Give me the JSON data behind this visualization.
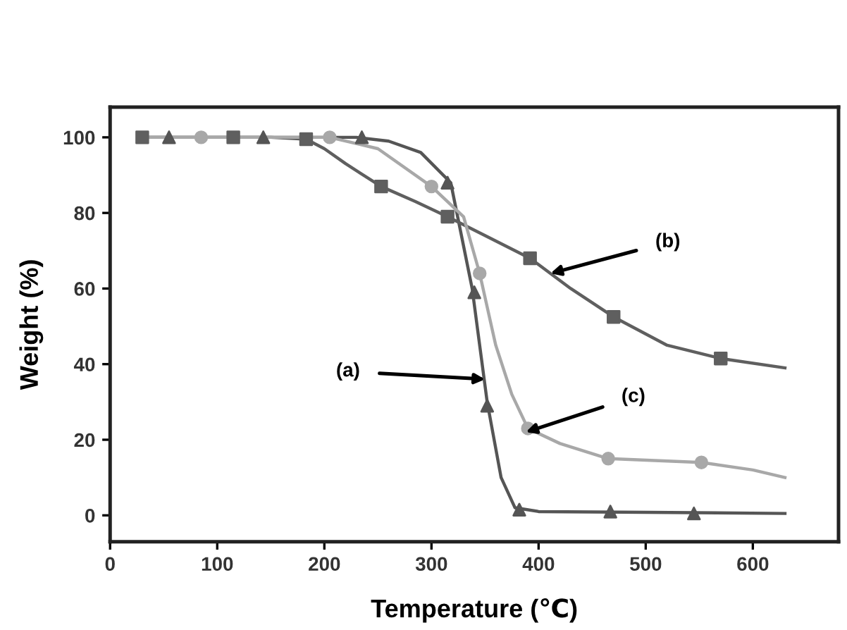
{
  "chart_data": {
    "type": "line",
    "xlabel": "Temperature (℃)",
    "ylabel": "Weight (%)",
    "xlim": [
      0,
      680
    ],
    "ylim": [
      -7,
      108
    ],
    "xticks": [
      0,
      100,
      200,
      300,
      400,
      500,
      600
    ],
    "yticks": [
      0,
      20,
      40,
      60,
      80,
      100
    ],
    "grid": false,
    "legend": false,
    "series": [
      {
        "color": "#555555",
        "marker": "none",
        "x": [
          30,
          150,
          230,
          260,
          290,
          318,
          338,
          352,
          365,
          378,
          400,
          500,
          630
        ],
        "values": [
          100,
          100,
          100,
          99,
          96,
          88,
          60,
          30,
          10,
          2,
          1,
          0.8,
          0.5
        ]
      },
      {
        "color": "#5f5f5f",
        "marker": "none",
        "x": [
          30,
          150,
          183,
          200,
          220,
          253,
          285,
          315,
          350,
          392,
          430,
          470,
          520,
          570,
          630
        ],
        "values": [
          100,
          100,
          99.5,
          97,
          93,
          87,
          83,
          79,
          74,
          68,
          60,
          52.5,
          45,
          41.5,
          39
        ]
      },
      {
        "color": "#a8a8a8",
        "marker": "none",
        "x": [
          30,
          150,
          205,
          250,
          300,
          330,
          345,
          360,
          375,
          390,
          420,
          465,
          552,
          600,
          630
        ],
        "values": [
          100,
          100,
          100,
          97,
          87,
          79,
          64,
          45,
          32,
          23,
          19,
          15,
          14,
          12,
          10
        ]
      },
      {
        "type": "scatter",
        "color": "#555555",
        "marker": "triangle",
        "x": [
          55,
          143,
          235,
          315,
          340,
          352,
          382,
          467,
          545
        ],
        "values": [
          100,
          100,
          100,
          88,
          59,
          29,
          1.5,
          1,
          0.5
        ]
      },
      {
        "type": "scatter",
        "color": "#a8a8a8",
        "marker": "circle",
        "x": [
          85,
          205,
          300,
          345,
          390,
          465,
          552
        ],
        "values": [
          100,
          100,
          87,
          64,
          23,
          15,
          14
        ]
      },
      {
        "type": "scatter",
        "color": "#5f5f5f",
        "marker": "square",
        "x": [
          30,
          115,
          183,
          253,
          315,
          392,
          470,
          570
        ],
        "values": [
          100,
          100,
          99.5,
          87,
          79,
          68,
          52.5,
          41.5
        ]
      }
    ],
    "annotations": [
      {
        "text": "(a)",
        "x": 350,
        "y": 36
      },
      {
        "text": "(b)",
        "x": 411,
        "y": 64
      },
      {
        "text": "(c)",
        "x": 388,
        "y": 22
      }
    ]
  }
}
